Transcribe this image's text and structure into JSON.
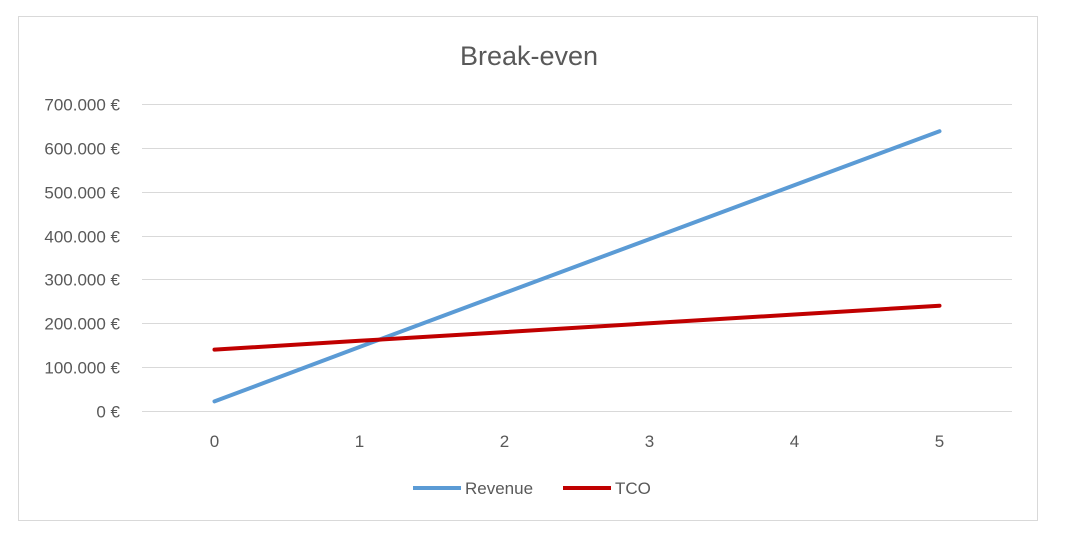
{
  "chart_data": {
    "type": "line",
    "title": "Break-even",
    "x": [
      0,
      1,
      2,
      3,
      4,
      5
    ],
    "x_tick_labels": [
      "0",
      "1",
      "2",
      "3",
      "4",
      "5"
    ],
    "ylim": [
      0,
      700000
    ],
    "y_ticks": [
      0,
      100000,
      200000,
      300000,
      400000,
      500000,
      600000,
      700000
    ],
    "y_tick_labels": [
      "0 €",
      "100.000 €",
      "200.000 €",
      "300.000 €",
      "400.000 €",
      "500.000 €",
      "600.000 €",
      "700.000 €"
    ],
    "grid": true,
    "legend_position": "bottom",
    "series": [
      {
        "name": "Revenue",
        "color": "#5b9bd5",
        "values": [
          22000,
          146000,
          269000,
          392000,
          515000,
          638000
        ]
      },
      {
        "name": "TCO",
        "color": "#c00000",
        "values": [
          140000,
          160000,
          180000,
          200000,
          220000,
          240000
        ]
      }
    ]
  }
}
